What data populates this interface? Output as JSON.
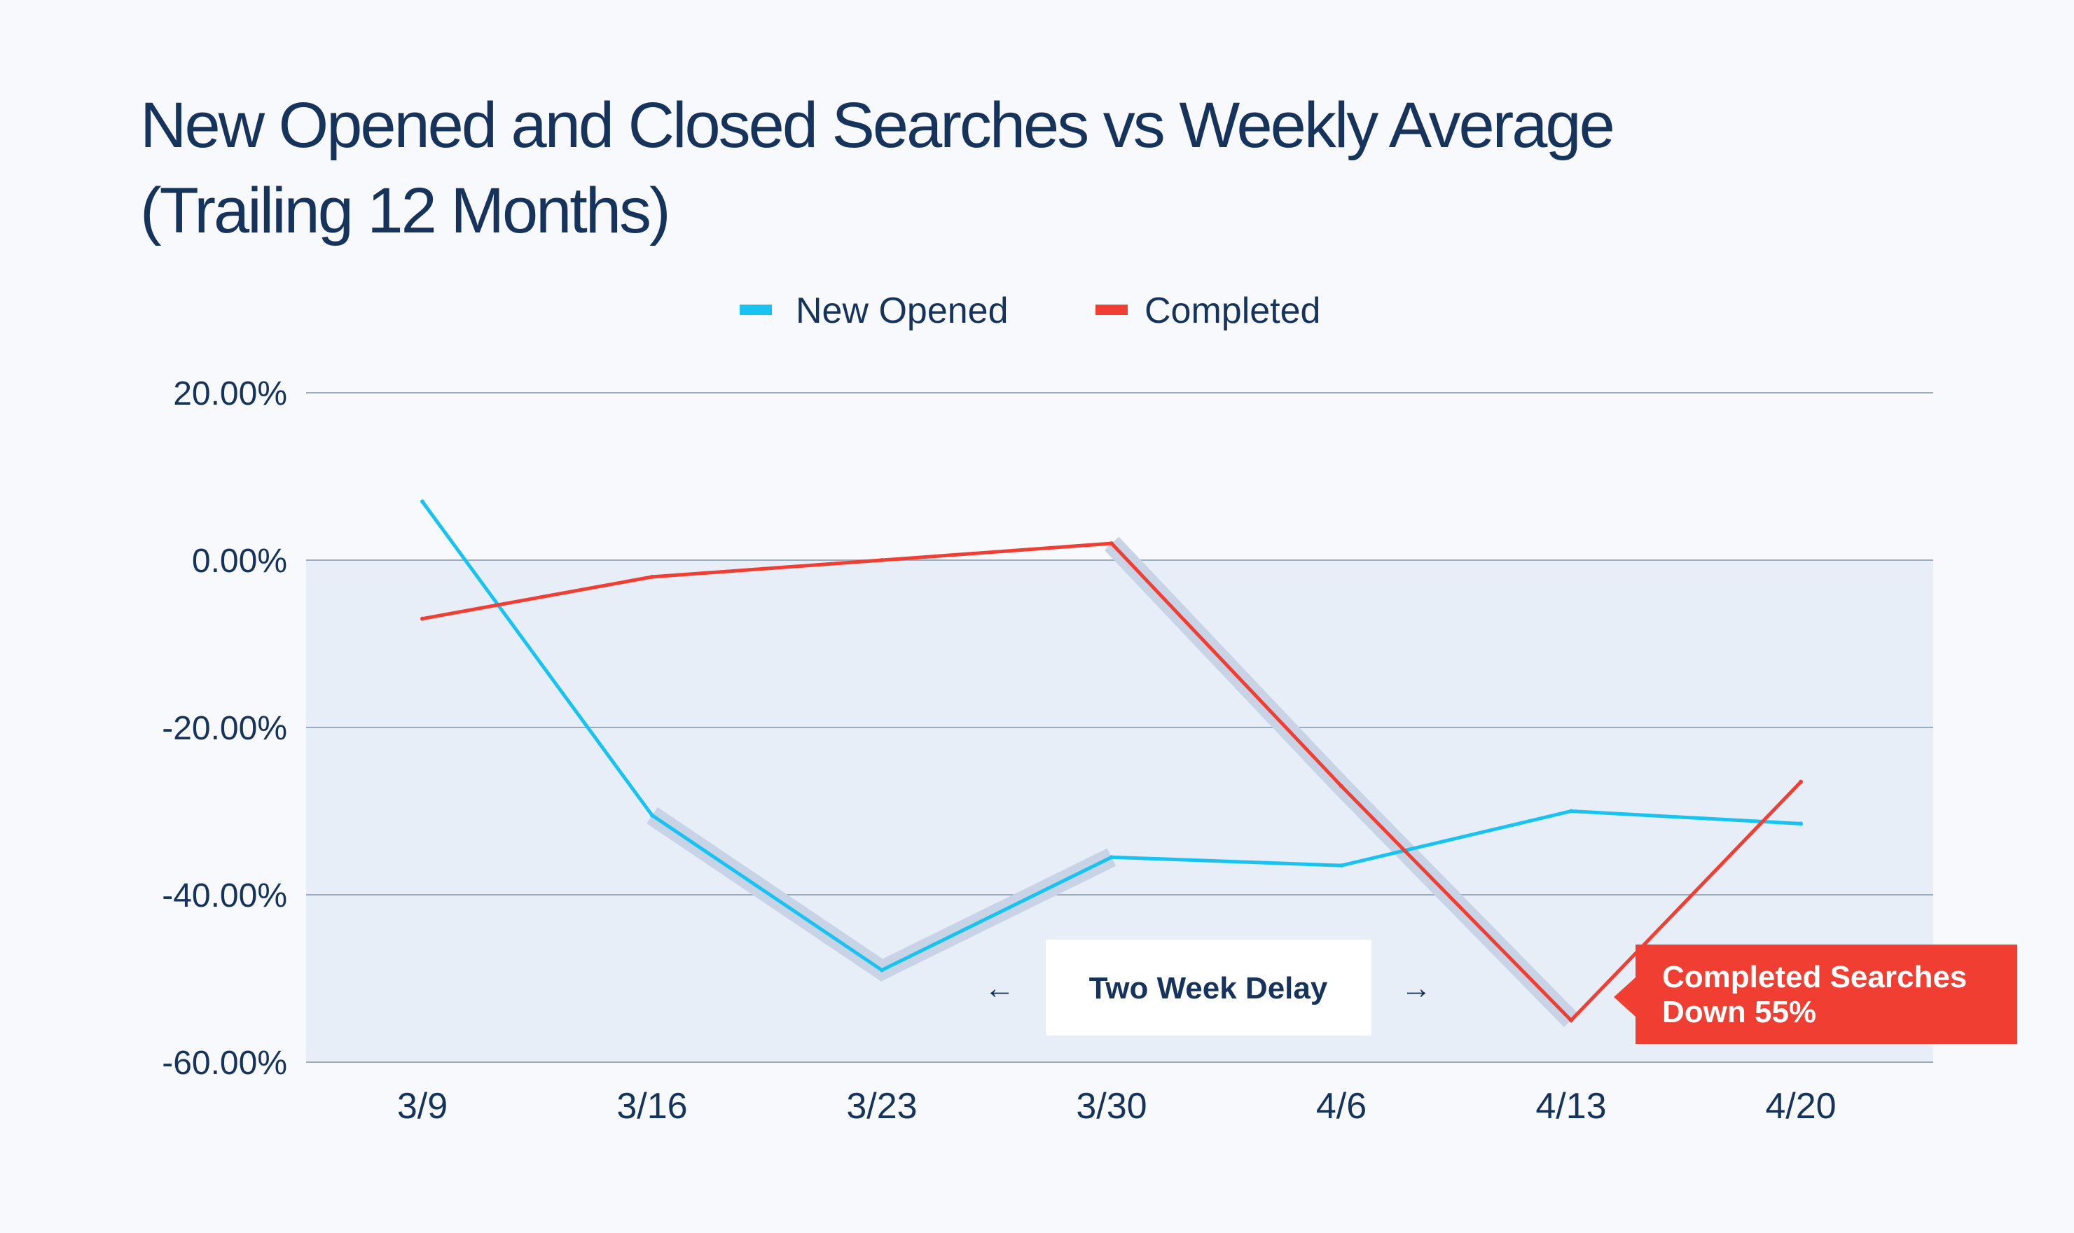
{
  "chart_data": {
    "type": "line",
    "title_lines": [
      "New Opened and Closed Searches vs Weekly Average",
      "(Trailing 12 Months)"
    ],
    "categories": [
      "3/9",
      "3/16",
      "3/23",
      "3/30",
      "4/6",
      "4/13",
      "4/20"
    ],
    "series": [
      {
        "name": "New Opened",
        "color": "#18c3f2",
        "values": [
          7,
          -30.5,
          -49,
          -35.5,
          -36.5,
          -30,
          -31.5
        ]
      },
      {
        "name": "Completed",
        "color": "#f03e32",
        "values": [
          -7,
          -2,
          0,
          2,
          -27,
          -55,
          -26.5
        ]
      }
    ],
    "y_ticks": [
      "20.00%",
      "0.00%",
      "-20.00%",
      "-40.00%",
      "-60.00%"
    ],
    "y_tick_values": [
      20,
      0,
      -20,
      -40,
      -60
    ],
    "ylim": [
      -60,
      20
    ],
    "grid": true,
    "legend_position": "top-center",
    "highlight_color": "#c8d3e6",
    "highlight_segments": [
      {
        "series": 0,
        "from_index": 1,
        "to_index": 3
      },
      {
        "series": 1,
        "from_index": 3,
        "to_index": 5
      }
    ],
    "annotations": {
      "delay_label": "Two Week Delay",
      "delay_arrow_left": "←",
      "delay_arrow_right": "→",
      "callout_lines": [
        "Completed Searches",
        "Down 55%"
      ],
      "callout_color": "#f03e32"
    }
  }
}
